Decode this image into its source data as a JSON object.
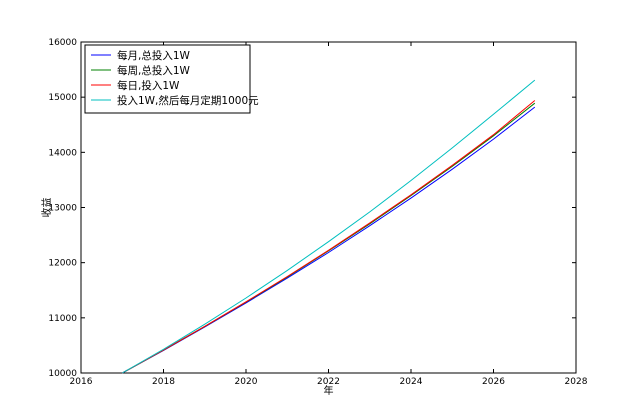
{
  "chart_data": {
    "type": "line",
    "title": "",
    "xlabel": "年",
    "ylabel": "收益",
    "xlim": [
      2016,
      2028
    ],
    "ylim": [
      10000,
      16000
    ],
    "xticks": [
      2016,
      2018,
      2020,
      2022,
      2024,
      2026,
      2028
    ],
    "yticks": [
      10000,
      11000,
      12000,
      13000,
      14000,
      15000,
      16000
    ],
    "grid": false,
    "legend_position": "top-left",
    "series": [
      {
        "name": "每月,总投入1W",
        "color": "#0000ff",
        "x": [
          2017,
          2018,
          2019,
          2020,
          2021,
          2022,
          2023,
          2024,
          2025,
          2026,
          2027
        ],
        "y": [
          10000,
          10410,
          10835,
          11270,
          11720,
          12185,
          12670,
          13170,
          13695,
          14240,
          14820
        ]
      },
      {
        "name": "每周,总投入1W",
        "color": "#008000",
        "x": [
          2017,
          2018,
          2019,
          2020,
          2021,
          2022,
          2023,
          2024,
          2025,
          2026,
          2027
        ],
        "y": [
          10000,
          10415,
          10845,
          11285,
          11740,
          12215,
          12705,
          13215,
          13745,
          14300,
          14890
        ]
      },
      {
        "name": "每日,投入1W",
        "color": "#ff0000",
        "x": [
          2017,
          2018,
          2019,
          2020,
          2021,
          2022,
          2023,
          2024,
          2025,
          2026,
          2027
        ],
        "y": [
          10000,
          10416,
          10847,
          11290,
          11750,
          12225,
          12720,
          13230,
          13765,
          14320,
          14940
        ]
      },
      {
        "name": "投入1W,然后每月定期1000元",
        "color": "#00bfbf",
        "x": [
          2017,
          2018,
          2019,
          2020,
          2021,
          2022,
          2023,
          2024,
          2025,
          2026,
          2027
        ],
        "y": [
          10000,
          10430,
          10885,
          11360,
          11860,
          12380,
          12920,
          13490,
          14080,
          14690,
          15310
        ]
      }
    ]
  }
}
